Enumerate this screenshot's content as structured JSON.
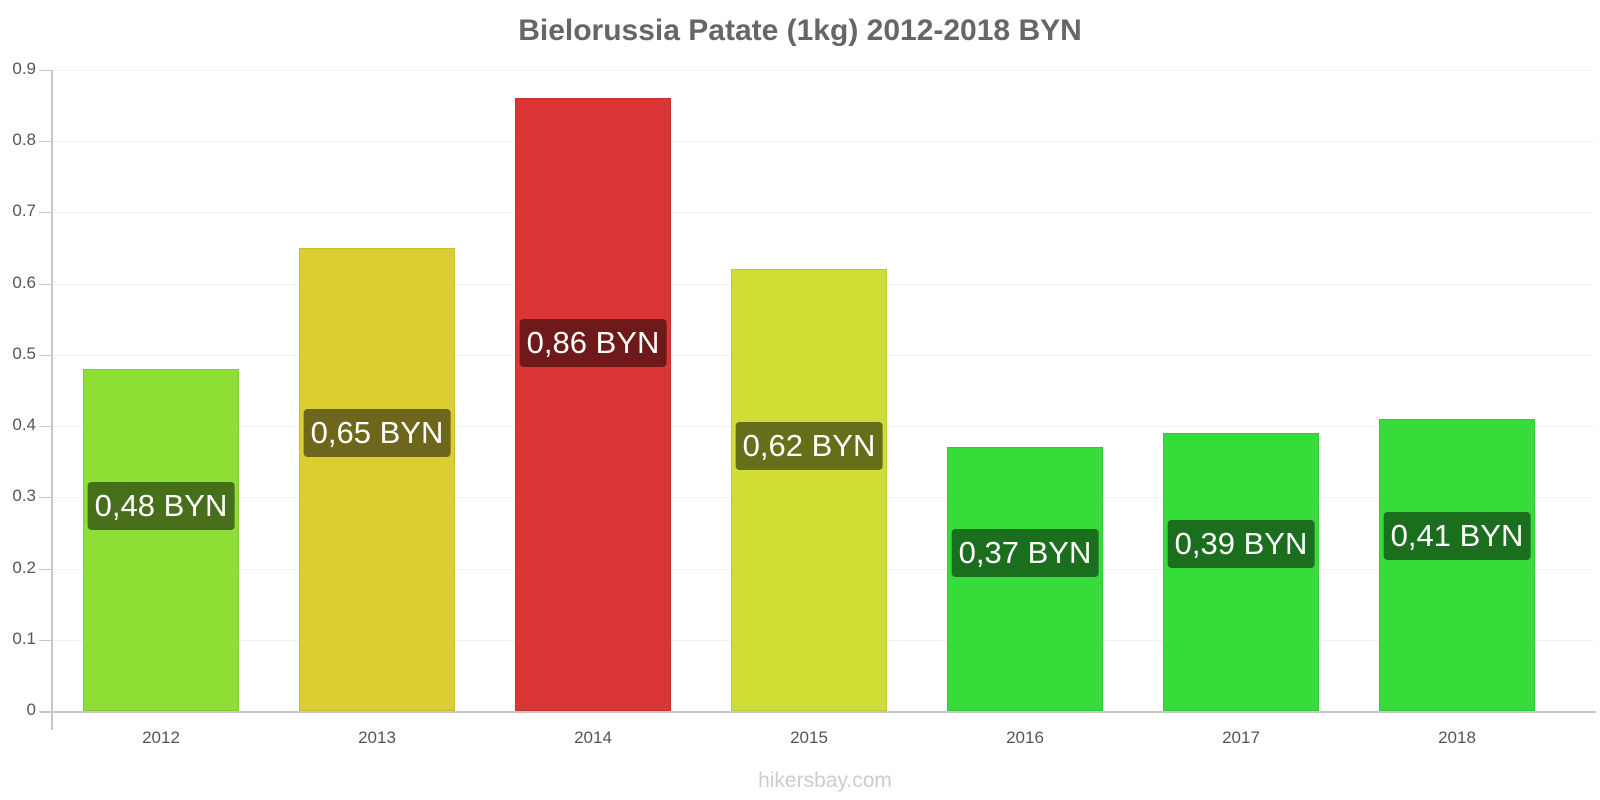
{
  "chart_data": {
    "type": "bar",
    "title": "Bielorussia Patate (1kg) 2012-2018 BYN",
    "xlabel": "",
    "ylabel": "",
    "categories": [
      "2012",
      "2013",
      "2014",
      "2015",
      "2016",
      "2017",
      "2018"
    ],
    "values": [
      0.48,
      0.65,
      0.86,
      0.62,
      0.37,
      0.39,
      0.41
    ],
    "value_labels": [
      "0,48 BYN",
      "0,65 BYN",
      "0,86 BYN",
      "0,62 BYN",
      "0,37 BYN",
      "0,39 BYN",
      "0,41 BYN"
    ],
    "bar_colors": [
      "#8ede36",
      "#dccd33",
      "#dc3535",
      "#cfdd35",
      "#36dd3a",
      "#36dd3a",
      "#36dd3a"
    ],
    "label_colors": [
      "#466e1b",
      "#6e661a",
      "#6e1a1a",
      "#676e1a",
      "#1b6e1d",
      "#1b6e1d",
      "#1b6e1d"
    ],
    "ylim": [
      0,
      0.9
    ],
    "yticks": [
      "0",
      "0.1",
      "0.2",
      "0.3",
      "0.4",
      "0.5",
      "0.6",
      "0.7",
      "0.8",
      "0.9"
    ],
    "grid": true,
    "legend": "none"
  },
  "footer": {
    "source": "hikersbay.com"
  }
}
